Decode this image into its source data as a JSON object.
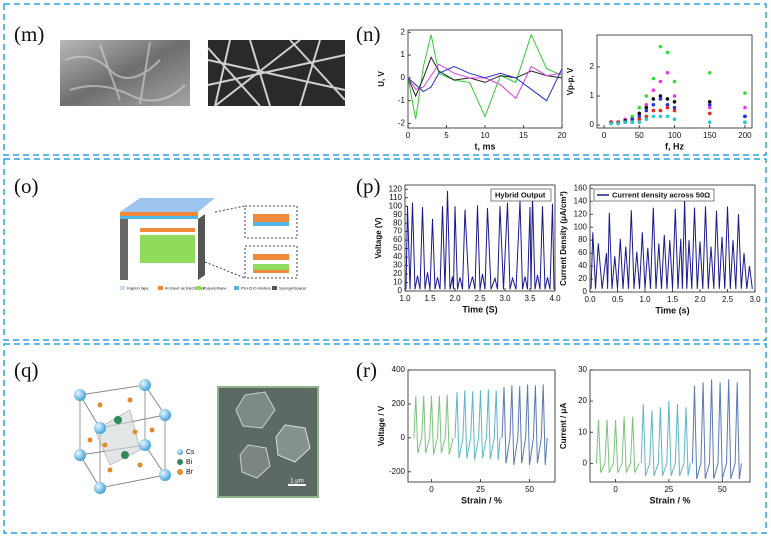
{
  "panels": [
    "(m)",
    "(n)",
    "(o)",
    "(p)",
    "(q)",
    "(r)"
  ],
  "device_legend": [
    "Kapton tape",
    "Al sheet as Electrodes",
    "Polyurethane",
    "PU+ZnO mixture",
    "Sponge/Spacer"
  ],
  "atom_legend": [
    "Cs",
    "Bi",
    "Br"
  ],
  "scale_bar": "1 μm",
  "chart_data": [
    {
      "type": "line",
      "xlabel": "t, ms",
      "ylabel": "U, V",
      "x": [
        0,
        1,
        2,
        3,
        4,
        6,
        8,
        10,
        12,
        14,
        16,
        18,
        20
      ],
      "xlim": [
        0,
        20
      ],
      "xticks": [
        0,
        5,
        10,
        15,
        20
      ],
      "ylim": [
        -2.2,
        2.1
      ],
      "yticks": [
        -2,
        -1,
        0,
        1,
        2
      ],
      "series": [
        {
          "color": "#33cc33",
          "values": [
            0,
            -1.8,
            0.5,
            1.9,
            0.2,
            -0.1,
            -0.2,
            -1.7,
            0.1,
            -0.2,
            1.9,
            0.4,
            0.1
          ]
        },
        {
          "color": "#222222",
          "values": [
            0,
            -0.8,
            0,
            0.9,
            0.3,
            -0.1,
            0,
            -0.2,
            0.1,
            0,
            0.3,
            0.1,
            0
          ]
        },
        {
          "color": "#e040e0",
          "values": [
            0,
            -0.5,
            -0.4,
            0.1,
            0.6,
            0.2,
            0,
            0,
            -0.3,
            -0.9,
            0.5,
            0.1,
            0.2
          ]
        },
        {
          "color": "#2233cc",
          "values": [
            0,
            -0.3,
            -0.6,
            -0.4,
            0.2,
            0.5,
            0.2,
            0,
            0.2,
            0,
            -0.5,
            -1.0,
            0.4
          ]
        }
      ]
    },
    {
      "type": "scatter",
      "xlabel": "f, Hz",
      "ylabel": "Vp-p, V",
      "x": [
        10,
        20,
        30,
        40,
        50,
        60,
        70,
        80,
        90,
        100,
        150,
        200
      ],
      "xlim": [
        -10,
        210
      ],
      "xticks": [
        0,
        50,
        100,
        150,
        200
      ],
      "ylim": [
        -0.1,
        3.1
      ],
      "yticks": [
        0,
        1,
        2
      ],
      "series": [
        {
          "color": "#33dd33",
          "values": [
            0.1,
            0.1,
            0.2,
            0.3,
            0.6,
            1.0,
            1.6,
            2.7,
            2.5,
            1.5,
            1.8,
            1.1
          ]
        },
        {
          "color": "#ee33ee",
          "values": [
            0.1,
            0.1,
            0.2,
            0.2,
            0.4,
            0.7,
            1.2,
            1.5,
            1.8,
            1.0,
            0.6,
            0.6
          ]
        },
        {
          "color": "#111111",
          "values": [
            0.1,
            0.1,
            0.15,
            0.2,
            0.4,
            0.6,
            0.9,
            1.0,
            0.9,
            0.8,
            0.8,
            0.3
          ]
        },
        {
          "color": "#2233ee",
          "values": [
            0.1,
            0.1,
            0.1,
            0.2,
            0.3,
            0.5,
            0.7,
            0.9,
            0.7,
            0.6,
            0.7,
            0.3
          ]
        },
        {
          "color": "#ee2222",
          "values": [
            0.1,
            0.1,
            0.1,
            0.1,
            0.2,
            0.3,
            0.5,
            0.5,
            0.6,
            0.5,
            0.4,
            0.1
          ]
        },
        {
          "color": "#22cccc",
          "values": [
            0.05,
            0.05,
            0.1,
            0.1,
            0.1,
            0.2,
            0.3,
            0.3,
            0.3,
            0.2,
            0.1,
            0.1
          ]
        }
      ]
    },
    {
      "type": "line",
      "xlabel": "Time (S)",
      "ylabel": "Voltage (V)",
      "x": [
        1.02,
        1.05,
        1.1,
        1.15,
        1.2,
        1.25,
        1.3,
        1.35,
        1.4,
        1.45,
        1.5,
        1.55,
        1.6,
        1.65,
        1.7,
        1.75,
        1.8,
        1.85,
        1.9,
        1.95,
        1.97,
        2.0,
        2.05,
        2.1,
        2.15,
        2.2,
        2.28,
        2.35,
        2.4,
        2.45,
        2.5,
        2.55,
        2.6,
        2.65,
        2.72,
        2.8,
        2.85,
        2.9,
        2.97,
        3.05,
        3.1,
        3.15,
        3.22,
        3.3,
        3.35,
        3.4,
        3.45,
        3.5,
        3.52,
        3.55,
        3.6,
        3.65,
        3.7,
        3.75,
        3.8,
        3.85,
        3.9,
        3.95,
        3.98
      ],
      "xlim": [
        1.0,
        4.0
      ],
      "xticks": [
        {
          "value": 1,
          "label": "1.0"
        },
        1.5,
        {
          "value": 2,
          "label": "2.0"
        },
        2.5,
        {
          "value": 3,
          "label": "3.0"
        },
        3.5,
        {
          "value": 4,
          "label": "4.0"
        }
      ],
      "ylim": [
        0,
        125
      ],
      "yticks": [
        0,
        10,
        20,
        30,
        40,
        50,
        60,
        70,
        80,
        90,
        100,
        110,
        120
      ],
      "legend": "upper right",
      "series": [
        {
          "name": "Hybrid Output",
          "color": "#1a1a8c",
          "values": [
            2,
            100,
            2,
            104,
            2,
            18,
            2,
            99,
            2,
            22,
            2,
            85,
            2,
            16,
            2,
            100,
            2,
            118,
            2,
            17,
            2,
            100,
            2,
            16,
            2,
            96,
            2,
            17,
            2,
            101,
            2,
            20,
            2,
            98,
            2,
            15,
            2,
            100,
            2,
            104,
            2,
            15,
            2,
            106,
            2,
            17,
            2,
            99,
            2,
            112,
            2,
            19,
            2,
            100,
            2,
            16,
            2,
            103,
            2
          ]
        }
      ]
    },
    {
      "type": "line",
      "xlabel": "Time (s)",
      "ylabel": "Current Density (μA/cm²)",
      "x": [
        0.02,
        0.05,
        0.1,
        0.15,
        0.22,
        0.3,
        0.32,
        0.35,
        0.4,
        0.45,
        0.5,
        0.55,
        0.6,
        0.65,
        0.7,
        0.75,
        0.8,
        0.85,
        0.9,
        0.95,
        1.0,
        1.05,
        1.1,
        1.15,
        1.2,
        1.25,
        1.3,
        1.35,
        1.4,
        1.45,
        1.5,
        1.55,
        1.6,
        1.65,
        1.68,
        1.72,
        1.76,
        1.8,
        1.85,
        1.9,
        1.95,
        2.0,
        2.05,
        2.1,
        2.15,
        2.2,
        2.25,
        2.3,
        2.35,
        2.4,
        2.45,
        2.5,
        2.55,
        2.6,
        2.65,
        2.7,
        2.75,
        2.8,
        2.85,
        2.9,
        2.95
      ],
      "xlim": [
        0,
        3.0
      ],
      "xticks": [
        {
          "value": 0,
          "label": "0.0"
        },
        0.5,
        {
          "value": 1,
          "label": "1.0"
        },
        1.5,
        {
          "value": 2,
          "label": "2.0"
        },
        2.5,
        {
          "value": 3,
          "label": "3.0"
        }
      ],
      "ylim": [
        0,
        165
      ],
      "yticks": [
        0,
        20,
        40,
        60,
        80,
        100,
        120,
        140,
        160
      ],
      "legend": "upper left",
      "series": [
        {
          "name": "Current density across 50Ω",
          "color": "#1a1a8c",
          "values": [
            5,
            92,
            5,
            75,
            5,
            60,
            5,
            122,
            5,
            55,
            5,
            82,
            5,
            70,
            5,
            126,
            5,
            62,
            5,
            92,
            5,
            68,
            5,
            130,
            5,
            75,
            5,
            88,
            5,
            80,
            5,
            128,
            5,
            82,
            5,
            142,
            5,
            80,
            5,
            130,
            5,
            78,
            5,
            132,
            5,
            70,
            5,
            125,
            5,
            85,
            5,
            132,
            5,
            80,
            5,
            120,
            5,
            60,
            5,
            40,
            5
          ]
        }
      ]
    },
    {
      "type": "line",
      "xlabel": "Strain / %",
      "ylabel": "Voltage / V",
      "xlim": [
        -12,
        63
      ],
      "xticks": [
        0,
        25,
        50
      ],
      "ylim": [
        -260,
        400
      ],
      "yticks": [
        -200,
        0,
        200,
        400
      ],
      "series": [
        {
          "color": "#7cc47c",
          "x": [
            -9,
            -8,
            -7,
            -5,
            -4,
            -3,
            -1,
            0,
            1,
            3,
            4,
            5,
            7,
            8,
            9,
            11
          ],
          "values": [
            0,
            245,
            -90,
            0,
            250,
            -90,
            0,
            250,
            -100,
            0,
            250,
            -90,
            0,
            255,
            -100,
            0
          ]
        },
        {
          "color": "#5cb8c8",
          "x": [
            12,
            13,
            14,
            16,
            17,
            18,
            20,
            21,
            22,
            24,
            25,
            26,
            28,
            29,
            30,
            32,
            33,
            34,
            35
          ],
          "values": [
            0,
            270,
            -120,
            0,
            280,
            -120,
            0,
            275,
            -130,
            0,
            280,
            -120,
            0,
            285,
            -125,
            0,
            280,
            -130,
            0
          ]
        },
        {
          "color": "#5a78b4",
          "x": [
            36,
            37,
            38,
            40,
            41,
            42,
            44,
            45,
            46,
            48,
            49,
            50,
            52,
            53,
            54,
            56,
            57,
            58,
            59
          ],
          "values": [
            0,
            300,
            -150,
            0,
            310,
            -160,
            0,
            305,
            -150,
            0,
            315,
            -160,
            0,
            310,
            -150,
            0,
            315,
            -160,
            0
          ]
        }
      ]
    },
    {
      "type": "line",
      "xlabel": "Strain / %",
      "ylabel": "Current / μA",
      "xlim": [
        -12,
        63
      ],
      "xticks": [
        0,
        25,
        50
      ],
      "ylim": [
        -6,
        30
      ],
      "yticks": [
        0,
        10,
        20,
        30
      ],
      "series": [
        {
          "color": "#7cc47c",
          "x": [
            -9,
            -8,
            -7,
            -5,
            -4,
            -3,
            -1,
            0,
            1,
            3,
            4,
            5,
            7,
            8,
            9,
            11
          ],
          "values": [
            0,
            14,
            -3,
            0,
            14,
            -3,
            0,
            14,
            -3,
            0,
            15,
            -3,
            0,
            15,
            -3,
            0
          ]
        },
        {
          "color": "#5cb8c8",
          "x": [
            12,
            13,
            14,
            16,
            17,
            18,
            20,
            21,
            22,
            24,
            25,
            26,
            28,
            29,
            30,
            32,
            33,
            34,
            35
          ],
          "values": [
            0,
            19,
            -4,
            0,
            17,
            -4,
            0,
            18,
            -4,
            0,
            20,
            -4,
            0,
            19,
            -4,
            0,
            18,
            -4,
            0
          ]
        },
        {
          "color": "#5a78b4",
          "x": [
            36,
            37,
            38,
            40,
            41,
            42,
            44,
            45,
            46,
            48,
            49,
            50,
            52,
            53,
            54,
            56,
            57,
            58,
            59
          ],
          "values": [
            0,
            25,
            -5,
            0,
            26,
            -5,
            0,
            27,
            -5,
            0,
            26,
            -5,
            0,
            27,
            -5,
            0,
            26,
            -5,
            0
          ]
        }
      ]
    }
  ]
}
